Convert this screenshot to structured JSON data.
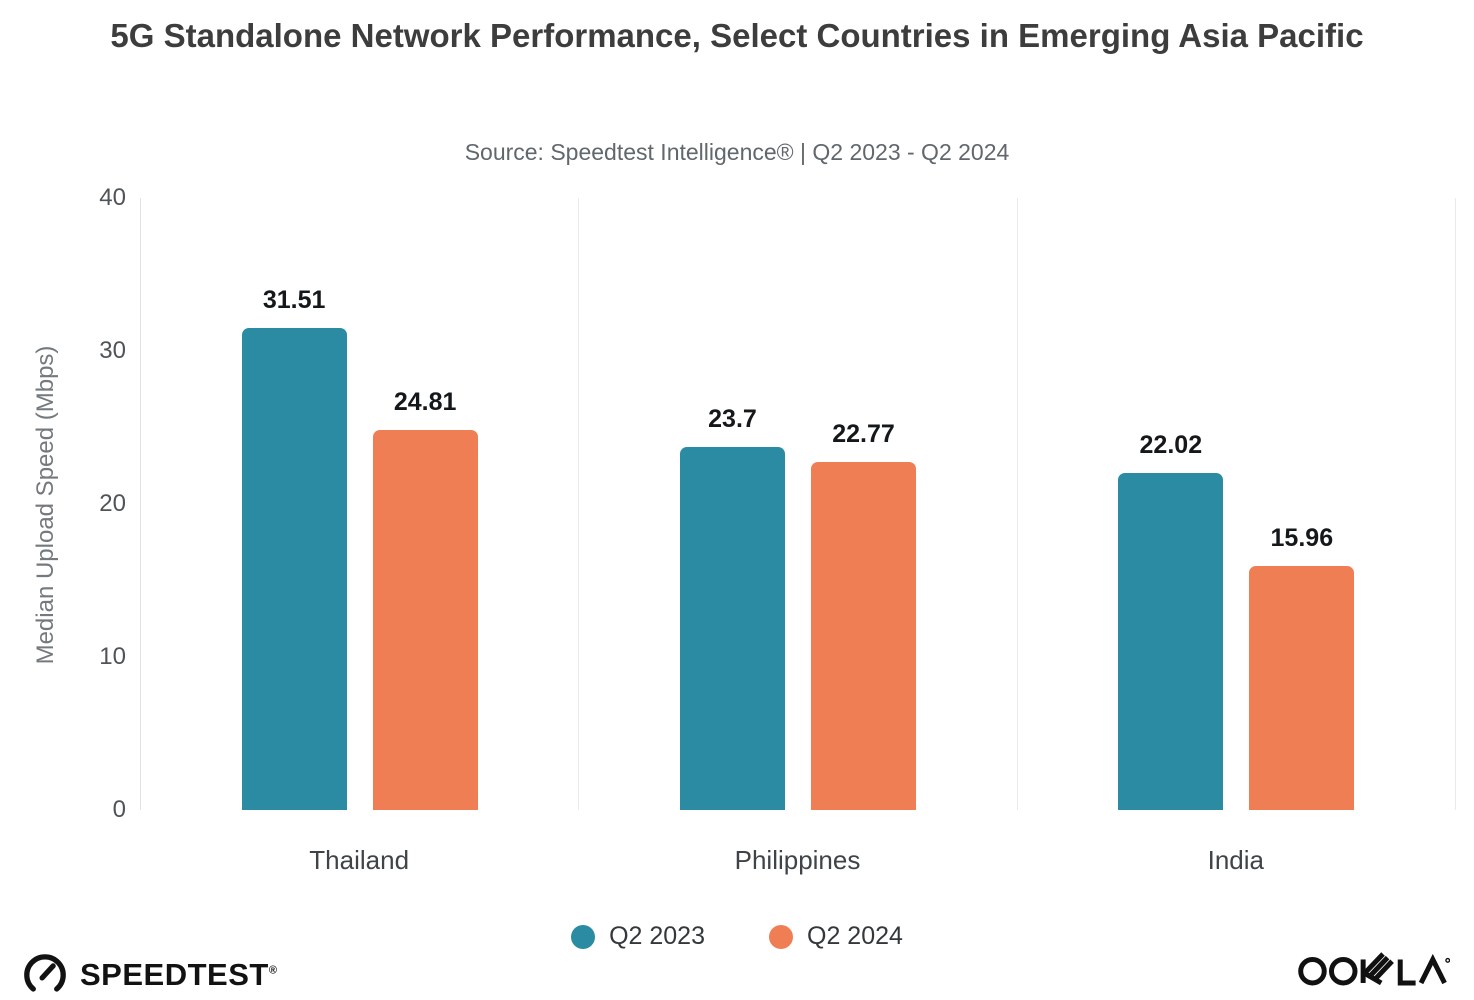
{
  "header": {
    "title": "5G Standalone Network Performance, Select Countries in Emerging Asia Pacific",
    "subtitle": "Source: Speedtest Intelligence® | Q2 2023 - Q2 2024"
  },
  "chart_data": {
    "type": "bar",
    "categories": [
      "Thailand",
      "Philippines",
      "India"
    ],
    "series": [
      {
        "name": "Q2 2023",
        "color": "#2b8ba2",
        "values": [
          31.51,
          23.7,
          22.02
        ]
      },
      {
        "name": "Q2 2024",
        "color": "#f07e54",
        "values": [
          24.81,
          22.77,
          15.96
        ]
      }
    ],
    "ylabel": "Median Upload Speed (Mbps)",
    "ylim": [
      0,
      40
    ],
    "yticks": [
      0,
      10,
      20,
      30,
      40
    ],
    "legend_position": "bottom",
    "grid": "vertical-category-separators",
    "value_labels_shown": true
  },
  "footer": {
    "speedtest_label": "SPEEDTEST",
    "ookla_label": "OOKLA",
    "registered_mark": "®"
  },
  "colors": {
    "q2_2023": "#2b8ba2",
    "q2_2024": "#f07e54",
    "separator": "#eaeaea",
    "axis_line": "#e3e3e3"
  }
}
